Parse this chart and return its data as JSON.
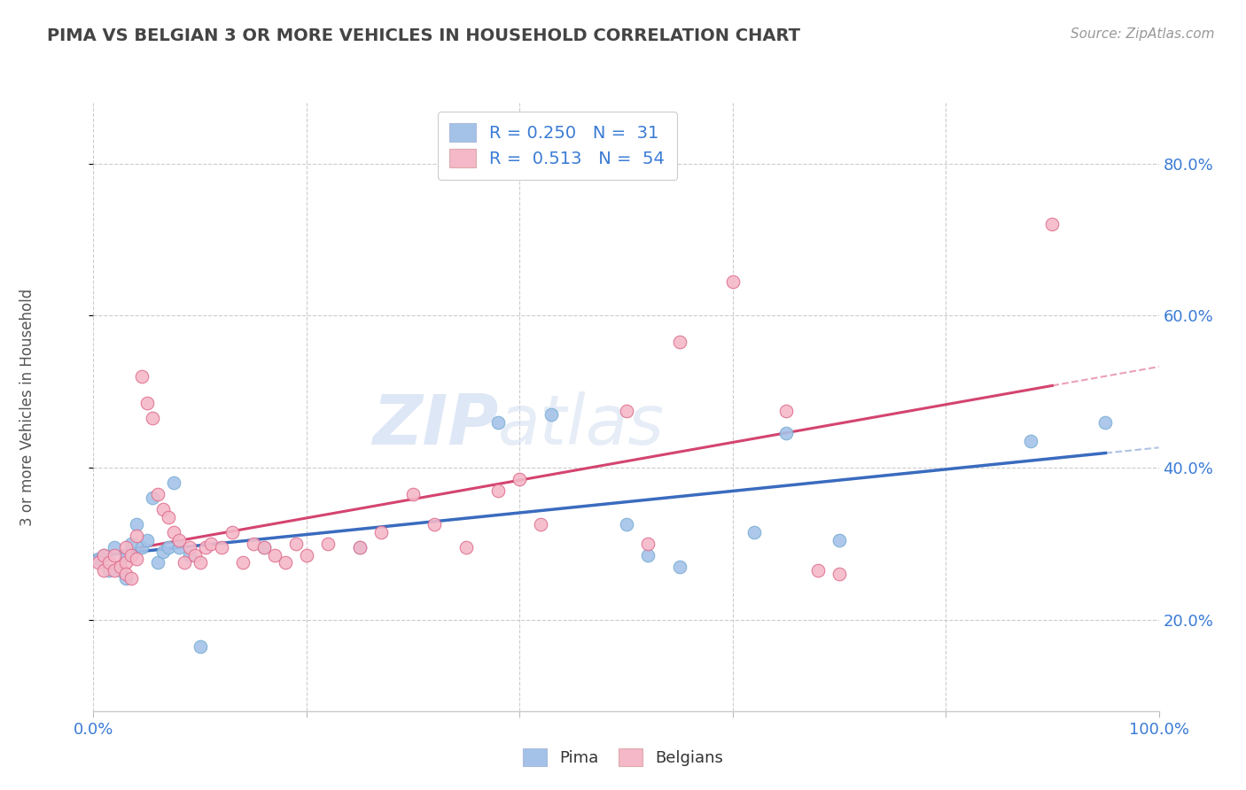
{
  "title": "PIMA VS BELGIAN 3 OR MORE VEHICLES IN HOUSEHOLD CORRELATION CHART",
  "source": "Source: ZipAtlas.com",
  "ylabel": "3 or more Vehicles in Household",
  "xlim": [
    0.0,
    1.0
  ],
  "ylim": [
    0.08,
    0.88
  ],
  "xticks": [
    0.0,
    0.2,
    0.4,
    0.6,
    0.8,
    1.0
  ],
  "yticks": [
    0.2,
    0.4,
    0.6,
    0.8
  ],
  "legend_r_pima": "0.250",
  "legend_n_pima": "31",
  "legend_r_belgian": "0.513",
  "legend_n_belgian": "54",
  "watermark_zip": "ZIP",
  "watermark_atlas": "atlas",
  "pima_color": "#a4c2e8",
  "pima_edge_color": "#7bafd4",
  "belgian_color": "#f4b8c8",
  "belgian_edge_color": "#e07090",
  "pima_line_color": "#3a6bbf",
  "belgian_line_color": "#d44470",
  "background_color": "#ffffff",
  "grid_color": "#cccccc",
  "pima_scatter_x": [
    0.005,
    0.01,
    0.015,
    0.02,
    0.025,
    0.03,
    0.03,
    0.035,
    0.04,
    0.045,
    0.05,
    0.055,
    0.06,
    0.065,
    0.07,
    0.075,
    0.08,
    0.09,
    0.1,
    0.16,
    0.25,
    0.38,
    0.43,
    0.5,
    0.52,
    0.55,
    0.62,
    0.65,
    0.7,
    0.88,
    0.95
  ],
  "pima_scatter_y": [
    0.28,
    0.285,
    0.265,
    0.295,
    0.265,
    0.285,
    0.255,
    0.3,
    0.325,
    0.295,
    0.305,
    0.36,
    0.275,
    0.29,
    0.295,
    0.38,
    0.295,
    0.285,
    0.165,
    0.295,
    0.295,
    0.46,
    0.47,
    0.325,
    0.285,
    0.27,
    0.315,
    0.445,
    0.305,
    0.435,
    0.46
  ],
  "belgian_scatter_x": [
    0.005,
    0.01,
    0.01,
    0.015,
    0.02,
    0.02,
    0.025,
    0.03,
    0.03,
    0.03,
    0.035,
    0.035,
    0.04,
    0.04,
    0.045,
    0.05,
    0.055,
    0.06,
    0.065,
    0.07,
    0.075,
    0.08,
    0.085,
    0.09,
    0.095,
    0.1,
    0.105,
    0.11,
    0.12,
    0.13,
    0.14,
    0.15,
    0.16,
    0.17,
    0.18,
    0.19,
    0.2,
    0.22,
    0.25,
    0.27,
    0.3,
    0.32,
    0.35,
    0.38,
    0.4,
    0.42,
    0.5,
    0.52,
    0.55,
    0.6,
    0.65,
    0.68,
    0.7,
    0.9
  ],
  "belgian_scatter_y": [
    0.275,
    0.285,
    0.265,
    0.275,
    0.285,
    0.265,
    0.27,
    0.295,
    0.275,
    0.26,
    0.255,
    0.285,
    0.31,
    0.28,
    0.52,
    0.485,
    0.465,
    0.365,
    0.345,
    0.335,
    0.315,
    0.305,
    0.275,
    0.295,
    0.285,
    0.275,
    0.295,
    0.3,
    0.295,
    0.315,
    0.275,
    0.3,
    0.295,
    0.285,
    0.275,
    0.3,
    0.285,
    0.3,
    0.295,
    0.315,
    0.365,
    0.325,
    0.295,
    0.37,
    0.385,
    0.325,
    0.475,
    0.3,
    0.565,
    0.645,
    0.475,
    0.265,
    0.26,
    0.72
  ]
}
